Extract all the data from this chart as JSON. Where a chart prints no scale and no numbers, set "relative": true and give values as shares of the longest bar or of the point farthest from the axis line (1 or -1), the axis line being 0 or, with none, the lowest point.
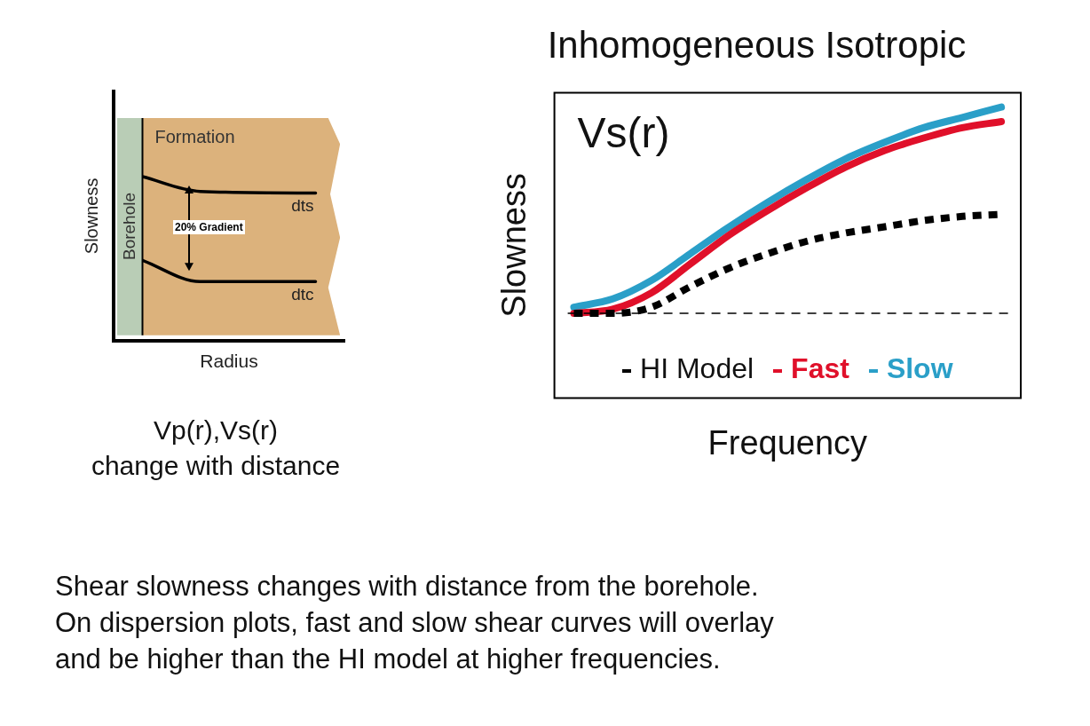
{
  "chart_data": [
    {
      "type": "line",
      "relative": true,
      "xlabel": "Radius",
      "ylabel": "Slowness",
      "tick_labels": false,
      "categories": [
        null,
        null,
        null,
        null,
        null,
        null,
        null,
        null,
        null
      ],
      "series": [
        {
          "name": "dts",
          "color": "#000000",
          "values": [
            null,
            1,
            null,
            0.91,
            null,
            null,
            null,
            0.9,
            null
          ]
        },
        {
          "name": "dtc",
          "color": "#000000",
          "values": [
            null,
            0.49,
            null,
            0.36,
            null,
            null,
            null,
            0.36,
            null
          ]
        }
      ],
      "annotations": [
        "Borehole",
        "Formation",
        "20% Gradient",
        "Vp(r),Vs(r)\nchange with distance"
      ]
    },
    {
      "type": "line",
      "relative": true,
      "title": "Inhomogeneous Isotropic",
      "xlabel": "Frequency",
      "ylabel": "Slowness",
      "tick_labels": false,
      "legend": "bottom",
      "categories": [
        null,
        null,
        null,
        null,
        null,
        null,
        null,
        null,
        null,
        null,
        null,
        null
      ],
      "series": [
        {
          "name": "HI Model",
          "color": "#000000",
          "line_style": "dashed",
          "values": [
            0,
            0,
            0.03,
            0.13,
            0.22,
            0.29,
            0.35,
            0.39,
            0.42,
            0.45,
            0.47,
            0.48
          ]
        },
        {
          "name": "Fast",
          "color": "#e0102a",
          "values": [
            0,
            0.02,
            0.1,
            0.24,
            0.38,
            0.5,
            0.61,
            0.71,
            0.79,
            0.85,
            0.9,
            0.93
          ]
        },
        {
          "name": "Slow",
          "color": "#2a9fc8",
          "values": [
            0.03,
            0.07,
            0.16,
            0.29,
            0.42,
            0.54,
            0.65,
            0.75,
            0.83,
            0.9,
            0.95,
            1
          ]
        }
      ],
      "ref_lines": [
        {
          "axis": "y",
          "value": 0,
          "line_style": "dashed",
          "color": "#000000"
        }
      ],
      "annotations": [
        "Vs(r)",
        "Shear slowness changes with distance from the borehole.\nOn dispersion plots, fast and slow shear curves will overlay\nand be higher than the HI model at higher frequencies."
      ]
    }
  ]
}
